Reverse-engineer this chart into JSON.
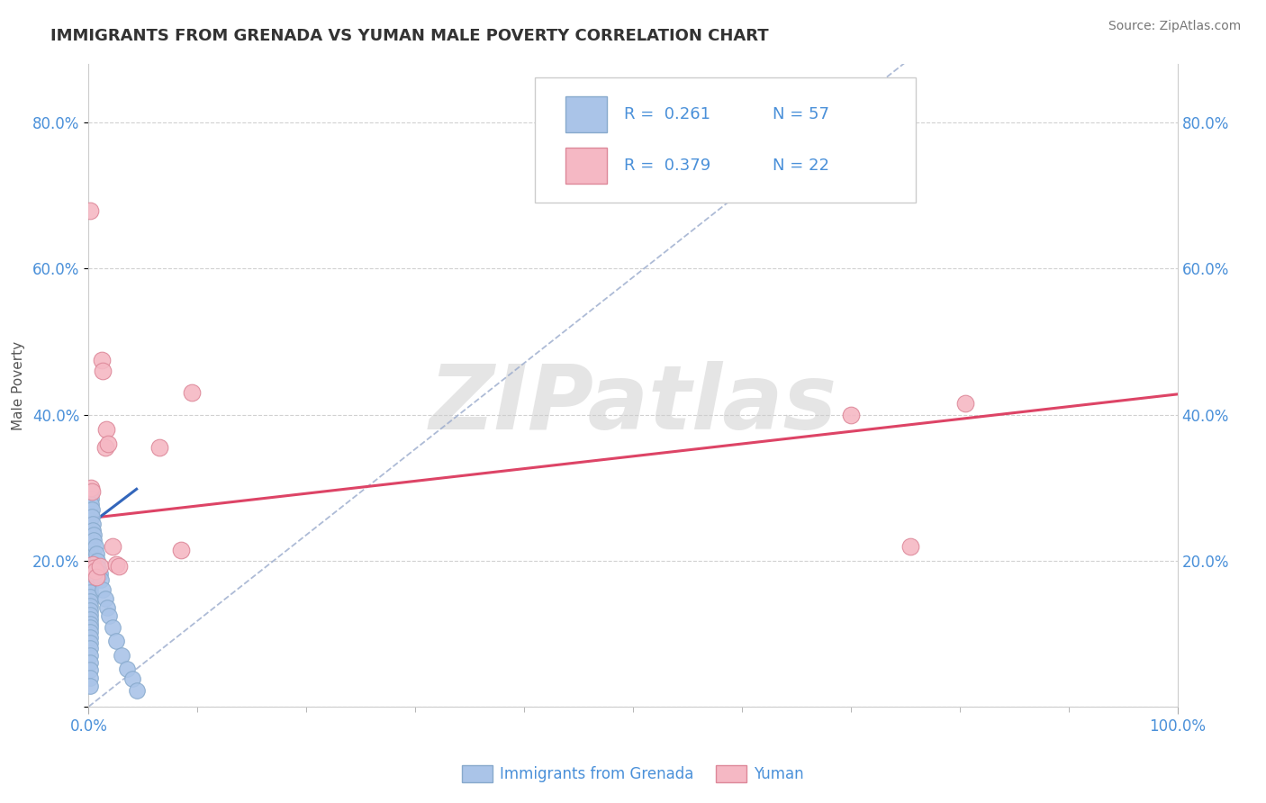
{
  "title": "IMMIGRANTS FROM GRENADA VS YUMAN MALE POVERTY CORRELATION CHART",
  "source": "Source: ZipAtlas.com",
  "ylabel": "Male Poverty",
  "legend_label1": "Immigrants from Grenada",
  "legend_label2": "Yuman",
  "r1": "0.261",
  "n1": "57",
  "r2": "0.379",
  "n2": "22",
  "blue_color": "#aac4e8",
  "blue_edge": "#88aacc",
  "pink_color": "#f5b8c4",
  "pink_edge": "#dd8899",
  "blue_line_color": "#3366bb",
  "pink_line_color": "#dd4466",
  "blue_dash_color": "#99aacc",
  "text_color": "#4a90d9",
  "title_color": "#333333",
  "grid_color": "#cccccc",
  "background_color": "#ffffff",
  "watermark": "ZIPatlas",
  "blue_scatter": [
    [
      0.001,
      0.27
    ],
    [
      0.001,
      0.255
    ],
    [
      0.001,
      0.245
    ],
    [
      0.001,
      0.235
    ],
    [
      0.001,
      0.225
    ],
    [
      0.001,
      0.215
    ],
    [
      0.001,
      0.205
    ],
    [
      0.001,
      0.198
    ],
    [
      0.001,
      0.192
    ],
    [
      0.001,
      0.186
    ],
    [
      0.001,
      0.18
    ],
    [
      0.001,
      0.174
    ],
    [
      0.001,
      0.168
    ],
    [
      0.001,
      0.162
    ],
    [
      0.001,
      0.156
    ],
    [
      0.001,
      0.15
    ],
    [
      0.001,
      0.144
    ],
    [
      0.001,
      0.138
    ],
    [
      0.001,
      0.132
    ],
    [
      0.001,
      0.126
    ],
    [
      0.001,
      0.12
    ],
    [
      0.001,
      0.114
    ],
    [
      0.001,
      0.108
    ],
    [
      0.001,
      0.102
    ],
    [
      0.001,
      0.095
    ],
    [
      0.001,
      0.088
    ],
    [
      0.001,
      0.08
    ],
    [
      0.001,
      0.07
    ],
    [
      0.001,
      0.06
    ],
    [
      0.001,
      0.05
    ],
    [
      0.001,
      0.04
    ],
    [
      0.001,
      0.028
    ],
    [
      0.002,
      0.295
    ],
    [
      0.002,
      0.285
    ],
    [
      0.002,
      0.278
    ],
    [
      0.003,
      0.27
    ],
    [
      0.003,
      0.26
    ],
    [
      0.004,
      0.25
    ],
    [
      0.004,
      0.242
    ],
    [
      0.005,
      0.235
    ],
    [
      0.005,
      0.228
    ],
    [
      0.006,
      0.22
    ],
    [
      0.007,
      0.21
    ],
    [
      0.008,
      0.2
    ],
    [
      0.009,
      0.19
    ],
    [
      0.01,
      0.182
    ],
    [
      0.011,
      0.174
    ],
    [
      0.013,
      0.16
    ],
    [
      0.015,
      0.148
    ],
    [
      0.017,
      0.136
    ],
    [
      0.019,
      0.124
    ],
    [
      0.022,
      0.108
    ],
    [
      0.025,
      0.09
    ],
    [
      0.03,
      0.07
    ],
    [
      0.035,
      0.052
    ],
    [
      0.04,
      0.038
    ],
    [
      0.044,
      0.022
    ]
  ],
  "pink_scatter": [
    [
      0.001,
      0.68
    ],
    [
      0.002,
      0.3
    ],
    [
      0.003,
      0.295
    ],
    [
      0.004,
      0.195
    ],
    [
      0.005,
      0.19
    ],
    [
      0.006,
      0.186
    ],
    [
      0.007,
      0.178
    ],
    [
      0.01,
      0.192
    ],
    [
      0.012,
      0.475
    ],
    [
      0.013,
      0.46
    ],
    [
      0.015,
      0.355
    ],
    [
      0.016,
      0.38
    ],
    [
      0.018,
      0.36
    ],
    [
      0.022,
      0.22
    ],
    [
      0.025,
      0.195
    ],
    [
      0.028,
      0.192
    ],
    [
      0.065,
      0.355
    ],
    [
      0.085,
      0.215
    ],
    [
      0.095,
      0.43
    ],
    [
      0.7,
      0.4
    ],
    [
      0.755,
      0.22
    ],
    [
      0.805,
      0.415
    ]
  ],
  "blue_reg_line": [
    [
      0.0,
      0.248
    ],
    [
      0.044,
      0.298
    ]
  ],
  "blue_dash_line": [
    [
      0.0,
      0.0
    ],
    [
      0.85,
      1.0
    ]
  ],
  "pink_reg_line": [
    [
      0.0,
      0.258
    ],
    [
      1.0,
      0.428
    ]
  ],
  "xlim": [
    0.0,
    1.0
  ],
  "ylim": [
    0.0,
    0.88
  ],
  "yticks": [
    0.0,
    0.2,
    0.4,
    0.6,
    0.8
  ],
  "xticks": [
    0.0,
    0.1,
    0.2,
    0.3,
    0.4,
    0.5,
    0.6,
    0.7,
    0.8,
    0.9,
    1.0
  ]
}
